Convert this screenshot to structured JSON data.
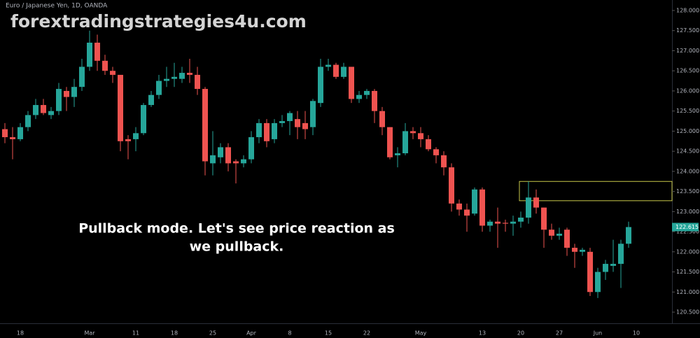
{
  "chart_data": {
    "type": "candlestick",
    "symbol_title": "Euro / Japanese Yen, 1D, OANDA",
    "watermark": "forextradingstrategies4u.com",
    "annotation": [
      "Pullback mode.  Let's see price reaction as",
      "we pullback."
    ],
    "categories": [
      null,
      null,
      "18",
      null,
      null,
      null,
      null,
      null,
      null,
      null,
      null,
      "Mar",
      null,
      null,
      null,
      null,
      null,
      "11",
      null,
      null,
      null,
      null,
      "18",
      null,
      null,
      null,
      null,
      "25",
      null,
      null,
      null,
      null,
      "Apr",
      null,
      null,
      null,
      null,
      "8",
      null,
      null,
      null,
      null,
      "15",
      null,
      null,
      null,
      null,
      "22",
      null,
      null,
      null,
      null,
      null,
      null,
      "May",
      null,
      null,
      null,
      null,
      null,
      null,
      null,
      "13",
      null,
      null,
      null,
      null,
      "20",
      null,
      null,
      null,
      null,
      "27",
      null,
      null,
      null,
      null,
      "Jun",
      null,
      null,
      null,
      null,
      "10"
    ],
    "open": [
      125.05,
      124.85,
      124.8,
      125.1,
      125.4,
      125.65,
      125.4,
      125.5,
      126.0,
      125.85,
      126.1,
      126.6,
      127.2,
      126.75,
      126.5,
      126.4,
      124.8,
      124.8,
      124.95,
      125.65,
      125.9,
      126.25,
      126.3,
      126.3,
      126.45,
      126.4,
      126.05,
      124.2,
      124.35,
      124.6,
      124.25,
      124.2,
      124.3,
      124.85,
      125.2,
      124.8,
      125.2,
      125.25,
      125.3,
      125.2,
      125.1,
      125.7,
      126.6,
      126.65,
      126.35,
      126.6,
      125.8,
      125.9,
      126.0,
      125.5,
      125.1,
      124.4,
      124.45,
      125.0,
      124.95,
      124.8,
      124.55,
      124.4,
      124.1,
      123.2,
      123.05,
      122.95,
      123.55,
      122.65,
      122.75,
      122.72,
      122.7,
      122.75,
      122.85,
      123.35,
      123.1,
      122.55,
      122.4,
      122.55,
      122.1,
      122.0,
      122.0,
      121.0,
      121.5,
      121.65,
      121.7,
      122.2,
      null
    ],
    "high": [
      125.2,
      125.1,
      125.2,
      125.5,
      125.8,
      125.8,
      125.6,
      126.2,
      126.1,
      126.3,
      126.8,
      127.5,
      127.4,
      126.9,
      126.6,
      126.4,
      124.9,
      125.1,
      125.7,
      126.0,
      126.4,
      126.6,
      126.7,
      126.6,
      126.8,
      126.6,
      126.1,
      125.0,
      124.7,
      124.7,
      124.3,
      124.4,
      125.0,
      125.3,
      125.3,
      125.3,
      125.4,
      125.5,
      125.5,
      125.5,
      125.8,
      126.8,
      126.8,
      126.7,
      126.7,
      126.6,
      126.0,
      126.05,
      126.05,
      125.6,
      125.1,
      124.6,
      125.2,
      125.1,
      125.1,
      124.9,
      124.6,
      124.5,
      124.2,
      123.3,
      123.2,
      123.6,
      123.6,
      122.8,
      123.1,
      122.8,
      122.9,
      123.0,
      123.75,
      123.55,
      123.1,
      122.7,
      122.6,
      122.6,
      122.2,
      122.1,
      122.1,
      121.6,
      121.8,
      122.3,
      122.3,
      122.75,
      null
    ],
    "low": [
      124.7,
      124.3,
      124.75,
      125.0,
      125.3,
      125.4,
      125.3,
      125.4,
      125.5,
      125.6,
      126.0,
      126.5,
      126.5,
      126.4,
      126.2,
      124.5,
      124.3,
      124.5,
      124.9,
      125.6,
      125.8,
      126.1,
      126.1,
      126.2,
      126.2,
      125.9,
      123.9,
      123.9,
      124.2,
      124.0,
      123.7,
      124.1,
      124.2,
      124.7,
      124.6,
      124.7,
      125.1,
      124.9,
      124.8,
      124.8,
      124.9,
      125.6,
      126.5,
      126.3,
      126.3,
      125.7,
      125.7,
      125.8,
      125.2,
      124.9,
      124.3,
      124.1,
      124.4,
      124.8,
      124.6,
      124.5,
      124.2,
      123.9,
      123.0,
      122.9,
      122.5,
      122.9,
      122.5,
      122.5,
      122.1,
      122.5,
      122.4,
      122.6,
      122.7,
      122.95,
      122.1,
      122.3,
      122.3,
      121.9,
      121.6,
      121.9,
      120.9,
      120.85,
      121.3,
      121.5,
      121.1,
      122.1,
      null
    ],
    "close": [
      124.85,
      124.8,
      125.1,
      125.4,
      125.65,
      125.45,
      125.5,
      126.05,
      125.85,
      126.1,
      126.6,
      127.2,
      126.75,
      126.5,
      126.4,
      124.75,
      124.75,
      124.95,
      125.65,
      125.9,
      126.25,
      126.3,
      126.35,
      126.45,
      126.4,
      126.05,
      124.25,
      124.4,
      124.6,
      124.2,
      124.2,
      124.3,
      124.85,
      125.2,
      124.75,
      125.2,
      125.25,
      125.45,
      125.1,
      125.05,
      125.75,
      126.6,
      126.65,
      126.35,
      126.6,
      125.8,
      125.9,
      126.0,
      125.5,
      125.1,
      124.35,
      124.45,
      125.0,
      124.95,
      124.8,
      124.55,
      124.4,
      124.1,
      123.2,
      123.05,
      122.9,
      123.55,
      122.65,
      122.75,
      122.7,
      122.7,
      122.75,
      122.85,
      123.35,
      123.1,
      122.55,
      122.4,
      122.45,
      122.1,
      122.0,
      122.05,
      121.0,
      121.5,
      121.7,
      121.7,
      122.2,
      122.615,
      null
    ],
    "up_color": "#26a69a",
    "down_color": "#ef5350",
    "last_price": 122.615,
    "zone": {
      "high": 123.75,
      "low": 123.27,
      "color": "#c8c84a"
    },
    "ylim": [
      120.222,
      128.261
    ],
    "yticks": [
      {
        "value": 120.5,
        "label": "120.500"
      },
      {
        "value": 121,
        "label": "121.000"
      },
      {
        "value": 121.5,
        "label": "121.500"
      },
      {
        "value": 122,
        "label": "122.000"
      },
      {
        "value": 122.5,
        "label": "122.500"
      },
      {
        "value": 123,
        "label": "123.000"
      },
      {
        "value": 123.5,
        "label": "123.500"
      },
      {
        "value": 124,
        "label": "124.000"
      },
      {
        "value": 124.5,
        "label": "124.500"
      },
      {
        "value": 125,
        "label": "125.000"
      },
      {
        "value": 125.5,
        "label": "125.500"
      },
      {
        "value": 126,
        "label": "126.000"
      },
      {
        "value": 126.5,
        "label": "126.500"
      },
      {
        "value": 127,
        "label": "127.000"
      },
      {
        "value": 127.5,
        "label": "127.500"
      },
      {
        "value": 128,
        "label": "128.000"
      }
    ]
  }
}
